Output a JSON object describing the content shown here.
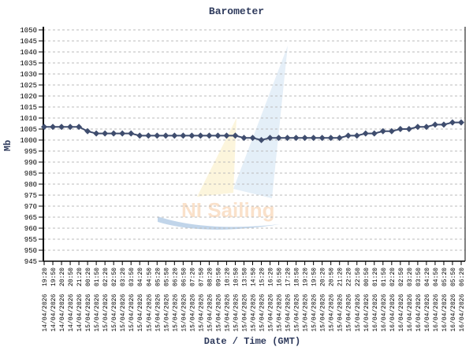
{
  "chart_data": {
    "type": "line",
    "title": "Barometer",
    "xlabel": "Date / Time (GMT)",
    "ylabel": "Mb",
    "ylim": [
      945,
      1050
    ],
    "ytick_step": 5,
    "grid": "horizontal dashed",
    "watermark": "NI Sailing",
    "colors": {
      "line": "#3f4d6e",
      "title": "#2e3a5c",
      "grid": "#bbbbbb"
    },
    "x": [
      "14/04/2026 19:20",
      "14/04/2026 19:50",
      "14/04/2026 20:20",
      "14/04/2026 20:50",
      "14/04/2026 21:20",
      "15/04/2026 00:20",
      "15/04/2026 01:50",
      "15/04/2026 02:20",
      "15/04/2026 02:50",
      "15/04/2026 03:20",
      "15/04/2026 03:50",
      "15/04/2026 04:20",
      "15/04/2026 04:50",
      "15/04/2026 05:20",
      "15/04/2026 05:50",
      "15/04/2026 06:20",
      "15/04/2026 06:50",
      "15/04/2026 07:20",
      "15/04/2026 07:50",
      "15/04/2026 08:20",
      "15/04/2026 09:50",
      "15/04/2026 10:20",
      "15/04/2026 10:50",
      "15/04/2026 13:50",
      "15/04/2026 14:50",
      "15/04/2026 15:20",
      "15/04/2026 16:20",
      "15/04/2026 16:50",
      "15/04/2026 17:20",
      "15/04/2026 18:50",
      "15/04/2026 19:20",
      "15/04/2026 19:50",
      "15/04/2026 20:20",
      "15/04/2026 20:50",
      "15/04/2026 21:20",
      "15/04/2026 22:20",
      "15/04/2026 22:50",
      "16/04/2026 00:50",
      "16/04/2026 01:20",
      "16/04/2026 01:50",
      "16/04/2026 02:20",
      "16/04/2026 02:50",
      "16/04/2026 03:20",
      "16/04/2026 03:50",
      "16/04/2026 04:20",
      "16/04/2026 04:50",
      "16/04/2026 05:20",
      "16/04/2026 05:50",
      "16/04/2026 06:20"
    ],
    "series": [
      {
        "values": [
          1006,
          1006,
          1006,
          1006,
          1006,
          1004,
          1003,
          1003,
          1003,
          1003,
          1003,
          1002,
          1002,
          1002,
          1002,
          1002,
          1002,
          1002,
          1002,
          1002,
          1002,
          1002,
          1002,
          1001,
          1001,
          1000,
          1001,
          1001,
          1001,
          1001,
          1001,
          1001,
          1001,
          1001,
          1001,
          1002,
          1002,
          1003,
          1003,
          1004,
          1004,
          1005,
          1005,
          1006,
          1006,
          1007,
          1007,
          1008,
          1008
        ]
      }
    ]
  }
}
